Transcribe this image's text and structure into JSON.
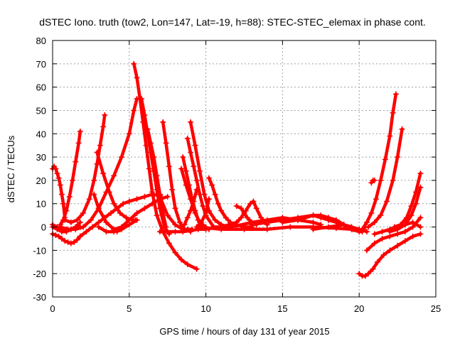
{
  "chart_data": {
    "type": "line",
    "title": "dSTEC Iono. truth (tow2, Lon=147, Lat=-19, h=88): STEC-STEC_elemax in phase cont.",
    "xlabel": "GPS time / hours of day 131 of year 2015",
    "ylabel": "dSTEC  / TECUs",
    "xlim": [
      0,
      25
    ],
    "ylim": [
      -30,
      80
    ],
    "xticks": [
      0,
      5,
      10,
      15,
      20,
      25
    ],
    "yticks": [
      -30,
      -20,
      -10,
      0,
      10,
      20,
      30,
      40,
      50,
      60,
      70,
      80
    ],
    "grid": true,
    "legend": "none",
    "marker": "plus",
    "color": "#ff0000",
    "series": [
      {
        "x": [
          0.0,
          0.2,
          0.4,
          0.6,
          0.8,
          1.0,
          1.2,
          1.4,
          1.6,
          1.8
        ],
        "y": [
          -3,
          -3.5,
          -4,
          -5,
          -6,
          -6.5,
          -7,
          -6.5,
          -5.5,
          -4
        ]
      },
      {
        "x": [
          1.8,
          2.2,
          2.6,
          3.0,
          3.4,
          3.8,
          4.2,
          4.6,
          5.0,
          5.5,
          6.0,
          6.5,
          7.0
        ],
        "y": [
          -4,
          -2,
          0,
          2,
          4,
          6,
          8,
          10,
          11,
          12,
          13,
          14,
          13.5
        ]
      },
      {
        "x": [
          0.0,
          0.1,
          0.2,
          0.3,
          0.4,
          0.5,
          0.6,
          0.7,
          0.8
        ],
        "y": [
          25,
          26,
          25,
          23,
          21,
          18,
          14,
          10,
          4
        ]
      },
      {
        "x": [
          0.0,
          0.3,
          0.6,
          0.9,
          1.2,
          1.5,
          1.8
        ],
        "y": [
          0,
          -1,
          -2,
          -2,
          -1,
          0,
          2
        ]
      },
      {
        "x": [
          0.0,
          0.3,
          0.6,
          0.9,
          1.2,
          1.5,
          1.8
        ],
        "y": [
          1,
          0,
          -0.5,
          -1,
          -1,
          0,
          0
        ]
      },
      {
        "x": [
          0.5,
          0.7,
          0.9,
          1.1,
          1.3,
          1.5,
          1.7,
          1.8
        ],
        "y": [
          1,
          3,
          7,
          13,
          20,
          28,
          36,
          41
        ]
      },
      {
        "x": [
          0.8,
          1.2,
          1.6,
          2.0,
          2.4,
          2.7,
          2.9,
          3.1,
          3.3,
          3.4
        ],
        "y": [
          3,
          2,
          3,
          6,
          12,
          20,
          27,
          35,
          43,
          48
        ]
      },
      {
        "x": [
          0.5,
          1.0,
          1.5,
          2.0,
          2.5,
          3.0,
          3.5,
          4.0,
          4.5,
          5.0,
          5.3,
          5.5
        ],
        "y": [
          0,
          -1,
          -1,
          0,
          3,
          8,
          15,
          22,
          30,
          40,
          50,
          55
        ]
      },
      {
        "x": [
          2.7,
          3.0,
          3.5,
          4.0,
          4.2,
          4.4
        ],
        "y": [
          14,
          8,
          2,
          -1,
          -2,
          -1
        ]
      },
      {
        "x": [
          3.0,
          3.5,
          4.0,
          4.5,
          5.0,
          5.5
        ],
        "y": [
          0,
          -2,
          -2,
          -1,
          1,
          3
        ]
      },
      {
        "x": [
          2.9,
          3.3,
          3.7,
          4.0,
          4.4,
          4.8,
          5.2,
          5.4
        ],
        "y": [
          32,
          23,
          15,
          10,
          6,
          4,
          3,
          3
        ]
      },
      {
        "x": [
          4.0,
          4.5,
          5.0,
          5.5,
          6.0,
          6.5,
          7.0,
          7.5
        ],
        "y": [
          -1,
          0,
          3,
          6,
          8,
          10,
          12,
          13
        ]
      },
      {
        "x": [
          5.3,
          5.5,
          5.7,
          5.9,
          6.1,
          6.3,
          6.5,
          6.8,
          7.2,
          7.6,
          8.0,
          8.4,
          8.8,
          9.4
        ],
        "y": [
          70,
          64,
          55,
          45,
          35,
          25,
          15,
          5,
          -2,
          -7,
          -11,
          -14,
          -16,
          -18
        ]
      },
      {
        "x": [
          5.8,
          6.0,
          6.2,
          6.4,
          6.6,
          6.8,
          7.0,
          7.3,
          7.6
        ],
        "y": [
          55,
          48,
          40,
          32,
          24,
          16,
          8,
          0,
          -3
        ]
      },
      {
        "x": [
          6.2,
          6.4,
          6.6,
          6.8,
          7.0,
          7.2,
          7.4
        ],
        "y": [
          42,
          36,
          30,
          22,
          14,
          6,
          0
        ]
      },
      {
        "x": [
          7.2,
          7.4,
          7.6,
          7.8,
          8.0,
          8.3,
          8.6,
          9.0
        ],
        "y": [
          45,
          36,
          26,
          16,
          8,
          2,
          -1,
          -2
        ]
      },
      {
        "x": [
          7.0,
          7.5,
          8.0,
          8.5,
          9.0,
          9.5,
          10.0
        ],
        "y": [
          -2,
          -2,
          -2,
          -2,
          -1.5,
          -1,
          -1
        ]
      },
      {
        "x": [
          7.0,
          7.5,
          8.0,
          8.5,
          8.8,
          9.1
        ],
        "y": [
          13,
          5,
          1,
          -1,
          -1,
          -1
        ]
      },
      {
        "x": [
          8.5,
          8.7,
          8.9,
          9.1,
          9.3,
          9.5,
          9.8,
          10.2
        ],
        "y": [
          30,
          24,
          18,
          12,
          7,
          3,
          0,
          -1
        ]
      },
      {
        "x": [
          8.8,
          9.0,
          9.2,
          9.4,
          9.6,
          9.8,
          10.0,
          10.5
        ],
        "y": [
          38,
          32,
          26,
          20,
          14,
          9,
          5,
          0
        ]
      },
      {
        "x": [
          8.4,
          8.7,
          9.0,
          9.3,
          9.6,
          10.0
        ],
        "y": [
          25,
          18,
          12,
          6,
          2,
          0
        ]
      },
      {
        "x": [
          8.4,
          8.6,
          8.8,
          9.0,
          9.2,
          9.4
        ],
        "y": [
          0,
          1,
          4,
          7,
          11,
          16
        ]
      },
      {
        "x": [
          9.0,
          9.3,
          9.6,
          9.9,
          10.2,
          10.6,
          11.0,
          11.5
        ],
        "y": [
          45,
          35,
          24,
          14,
          7,
          3,
          1,
          0
        ]
      },
      {
        "x": [
          9.4,
          9.7,
          10.0,
          10.2
        ],
        "y": [
          0,
          2,
          6,
          12
        ]
      },
      {
        "x": [
          10.2,
          10.4,
          10.6,
          10.8,
          11.0,
          11.3,
          11.6,
          12.0,
          12.5,
          13.0
        ],
        "y": [
          21,
          18,
          14,
          10,
          7,
          4,
          2,
          1,
          0,
          0
        ]
      },
      {
        "x": [
          10.5,
          11.0,
          11.5,
          12.0,
          12.3,
          12.6,
          12.9,
          13.1,
          13.3,
          13.6,
          14.0
        ],
        "y": [
          0,
          0,
          1,
          2,
          4,
          7,
          10,
          11,
          8,
          4,
          1
        ]
      },
      {
        "x": [
          12.0,
          12.3,
          12.5,
          12.7,
          13.0,
          13.3
        ],
        "y": [
          9,
          8,
          6,
          4,
          2,
          1
        ]
      },
      {
        "x": [
          9.5,
          11.0,
          12.5,
          14.0,
          15.5,
          17.0,
          18.5,
          19.5,
          20.0
        ],
        "y": [
          0,
          -1,
          -1,
          -1,
          0,
          0,
          -0.5,
          -1,
          -2
        ]
      },
      {
        "x": [
          11.0,
          12.0,
          13.0,
          14.0,
          15.0,
          16.0,
          17.0,
          17.5
        ],
        "y": [
          0,
          0.5,
          2,
          3,
          4,
          3,
          2,
          1
        ]
      },
      {
        "x": [
          13.0,
          14.0,
          15.0,
          16.0,
          17.0,
          17.5,
          18.0,
          18.5,
          19.0,
          19.5,
          20.0
        ],
        "y": [
          1,
          2,
          3,
          4,
          5,
          4,
          3,
          2,
          1,
          0,
          -1
        ]
      },
      {
        "x": [
          15.0,
          16.0,
          17.0,
          17.5,
          18.0,
          18.5,
          19.0
        ],
        "y": [
          2,
          3,
          5,
          5,
          4,
          3,
          1
        ]
      },
      {
        "x": [
          17.0,
          18.0,
          19.0,
          19.5,
          20.0,
          20.5
        ],
        "y": [
          -1,
          0,
          1,
          0,
          -1,
          -2
        ]
      },
      {
        "x": [
          18.0,
          18.7,
          19.2,
          19.6,
          20.0,
          20.2,
          20.4
        ],
        "y": [
          3,
          2,
          0,
          -1,
          -2,
          -2,
          0
        ]
      },
      {
        "x": [
          20.2,
          20.5,
          20.8,
          21.1,
          21.4,
          21.7,
          22.0,
          22.2,
          22.4
        ],
        "y": [
          -1,
          2,
          6,
          12,
          20,
          29,
          39,
          49,
          57
        ]
      },
      {
        "x": [
          20.6,
          21.0,
          21.4,
          21.8,
          22.2,
          22.5,
          22.8
        ],
        "y": [
          0,
          2,
          5,
          11,
          20,
          30,
          42
        ]
      },
      {
        "x": [
          20.8,
          20.9,
          21.0
        ],
        "y": [
          19,
          20,
          20
        ]
      },
      {
        "x": [
          20.0,
          20.2,
          20.4,
          20.6,
          20.9,
          21.2,
          21.6,
          22.0,
          22.5,
          23.0,
          23.5,
          24.0
        ],
        "y": [
          -20,
          -21,
          -21,
          -20,
          -18,
          -15,
          -12,
          -10,
          -8,
          -6,
          -4,
          -3
        ]
      },
      {
        "x": [
          20.5,
          21.0,
          21.5,
          22.0,
          22.5,
          23.0,
          23.5,
          24.0
        ],
        "y": [
          -10,
          -7,
          -5,
          -4,
          -3,
          -2,
          0,
          4
        ]
      },
      {
        "x": [
          21.0,
          21.5,
          22.0,
          22.5,
          23.0,
          23.5,
          24.0
        ],
        "y": [
          -3,
          -2,
          -1,
          0,
          1,
          2,
          0
        ]
      },
      {
        "x": [
          22.0,
          22.5,
          23.0,
          23.4,
          23.7,
          24.0
        ],
        "y": [
          -2,
          -1,
          1,
          5,
          10,
          17
        ]
      },
      {
        "x": [
          22.3,
          22.7,
          23.1,
          23.4,
          23.7,
          24.0
        ],
        "y": [
          0,
          1,
          4,
          9,
          15,
          23
        ]
      }
    ]
  }
}
